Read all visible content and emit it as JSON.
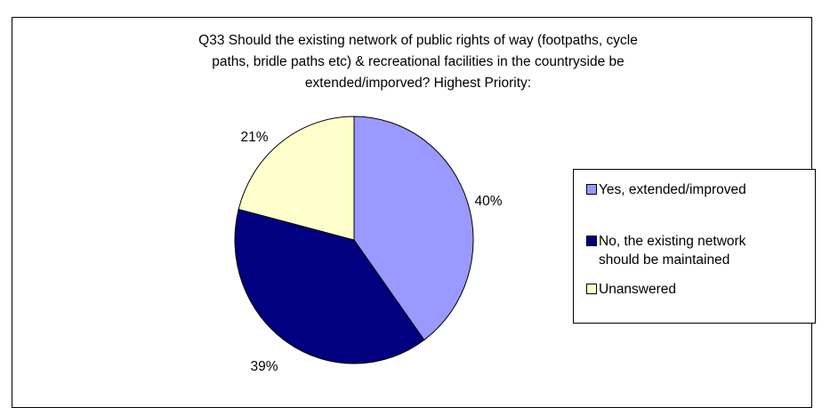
{
  "chart_data": {
    "type": "pie",
    "title": [
      "Q33 Should the existing network of public rights of way (footpaths, cycle",
      "paths, bridle paths etc) & recreational facilities in the countryside be",
      "extended/imporved? Highest Priority:"
    ],
    "categories": [
      "Yes, extended/improved",
      "No, the existing network should be maintained",
      "Unanswered"
    ],
    "values": [
      40,
      39,
      21
    ],
    "data_labels": [
      "40%",
      "39%",
      "21%"
    ],
    "colors": [
      "#9999FF",
      "#000080",
      "#FFFFCC"
    ],
    "legend_position": "right",
    "start_angle": "12 o'clock, clockwise"
  },
  "legend": {
    "items": [
      {
        "line1": "Yes, extended/improved",
        "line2": ""
      },
      {
        "line1": "No, the existing network",
        "line2": "should be maintained"
      },
      {
        "line1": "Unanswered",
        "line2": ""
      }
    ]
  }
}
